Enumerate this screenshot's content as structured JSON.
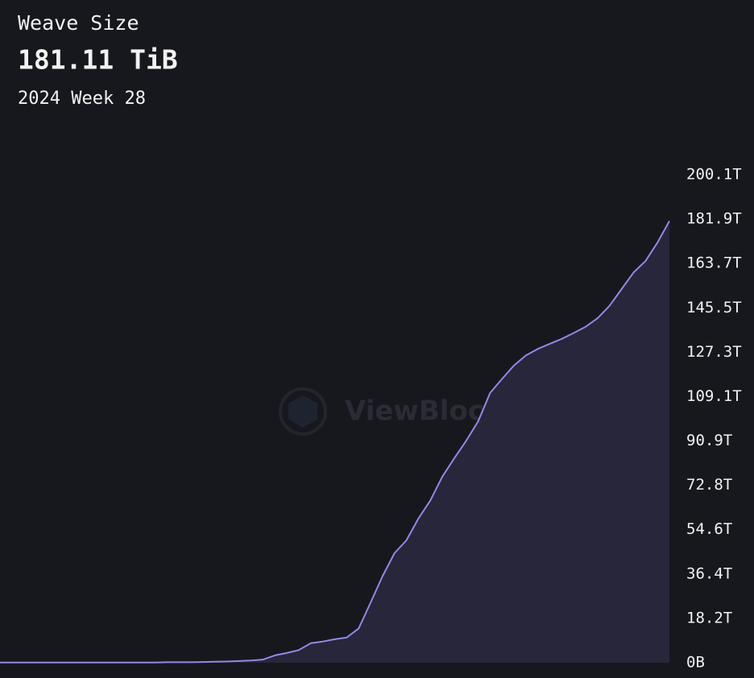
{
  "chart_data": {
    "type": "area",
    "title": "Weave Size",
    "headline": "181.11 TiB",
    "subtitle": "2024 Week 28",
    "watermark": "ViewBlock",
    "line_color": "#8f8ae6",
    "fill_color": "#27263a",
    "values": [
      0.1,
      0.1,
      0.1,
      0.1,
      0.1,
      0.1,
      0.1,
      0.1,
      0.1,
      0.1,
      0.1,
      0.1,
      0.1,
      0.1,
      0.2,
      0.2,
      0.2,
      0.3,
      0.4,
      0.5,
      0.7,
      0.9,
      1.3,
      3.0,
      4.0,
      5.2,
      8.0,
      8.7,
      9.6,
      10.3,
      14,
      24.6,
      35.5,
      44.9,
      50.2,
      59.1,
      66.5,
      76.3,
      83.8,
      91,
      99,
      110.6,
      116.4,
      121.9,
      126,
      128.7,
      130.8,
      132.8,
      135.2,
      137.8,
      141.3,
      146.4,
      153.2,
      160,
      164.7,
      172.3,
      181.11
    ],
    "ylim": [
      0,
      200.1
    ],
    "yticks": [
      {
        "value": 0,
        "label": "0B"
      },
      {
        "value": 18.2,
        "label": "18.2T"
      },
      {
        "value": 36.4,
        "label": "36.4T"
      },
      {
        "value": 54.6,
        "label": "54.6T"
      },
      {
        "value": 72.8,
        "label": "72.8T"
      },
      {
        "value": 90.9,
        "label": "90.9T"
      },
      {
        "value": 109.1,
        "label": "109.1T"
      },
      {
        "value": 127.3,
        "label": "127.3T"
      },
      {
        "value": 145.5,
        "label": "145.5T"
      },
      {
        "value": 163.7,
        "label": "163.7T"
      },
      {
        "value": 181.9,
        "label": "181.9T"
      },
      {
        "value": 200.1,
        "label": "200.1T"
      }
    ]
  }
}
